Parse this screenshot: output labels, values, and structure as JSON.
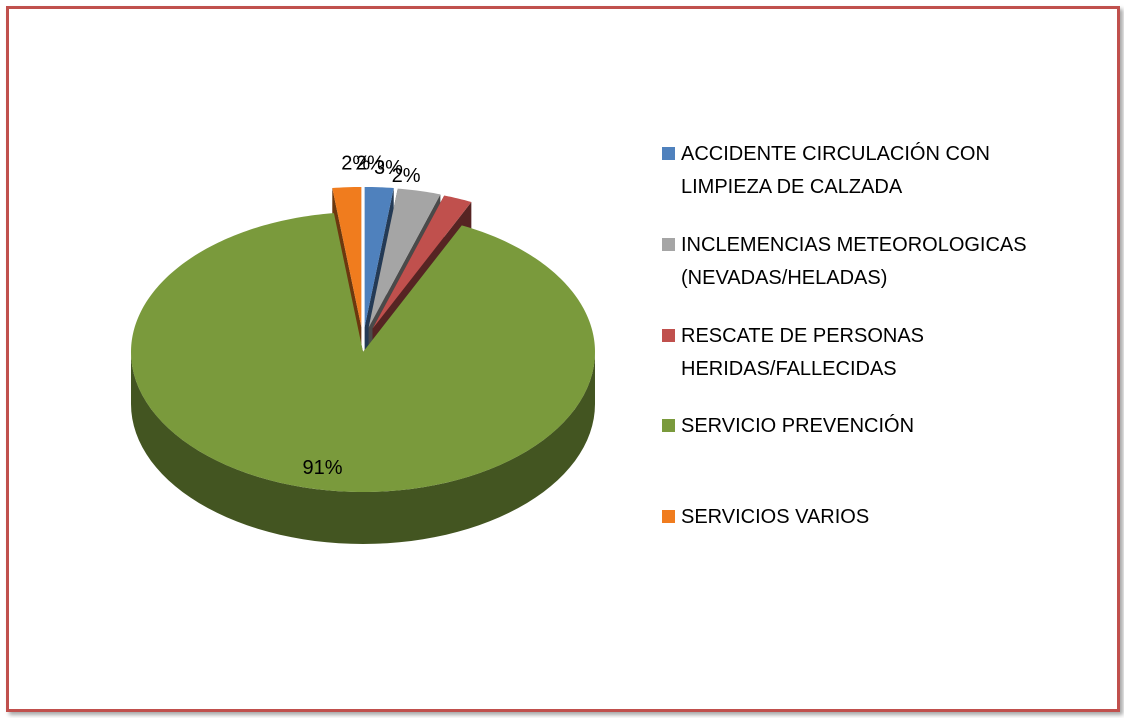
{
  "chart_data": {
    "type": "pie",
    "categories": [
      "ACCIDENTE CIRCULACIÓN CON LIMPIEZA DE CALZADA",
      "INCLEMENCIAS METEOROLOGICAS (NEVADAS/HELADAS)",
      "RESCATE DE PERSONAS HERIDAS/FALLECIDAS",
      "SERVICIO PREVENCIÓN",
      "SERVICIOS VARIOS"
    ],
    "values": [
      2,
      3,
      2,
      91,
      2
    ],
    "value_labels": [
      "2%",
      "3%",
      "2%",
      "91%",
      "2%"
    ],
    "colors": [
      "#4f81bd",
      "#a5a5a5",
      "#c0504d",
      "#7a9a3c",
      "#f07c1e"
    ],
    "legend": "right"
  }
}
